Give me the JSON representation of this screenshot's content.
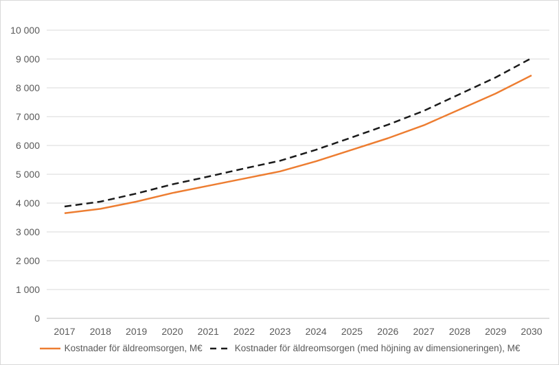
{
  "chart_data": {
    "type": "line",
    "title": "",
    "xlabel": "",
    "ylabel": "",
    "categories": [
      "2017",
      "2018",
      "2019",
      "2020",
      "2021",
      "2022",
      "2023",
      "2024",
      "2025",
      "2026",
      "2027",
      "2028",
      "2029",
      "2030"
    ],
    "series": [
      {
        "name": "Kostnader för äldreomsorgen, M€",
        "color": "#ED7D31",
        "dash": "solid",
        "values": [
          3650,
          3800,
          4050,
          4350,
          4600,
          4850,
          5100,
          5450,
          5850,
          6250,
          6700,
          7250,
          7800,
          8430
        ]
      },
      {
        "name": "Kostnader för äldreomsorgen (med höjning av dimensioneringen), M€",
        "color": "#1A1A1A",
        "dash": "dashed",
        "values": [
          3880,
          4050,
          4330,
          4650,
          4920,
          5200,
          5470,
          5850,
          6280,
          6720,
          7200,
          7780,
          8360,
          9030
        ]
      }
    ],
    "ylim": [
      0,
      10000
    ],
    "ytick_step": 1000,
    "y_tick_labels": [
      "0",
      "1 000",
      "2 000",
      "3 000",
      "4 000",
      "5 000",
      "6 000",
      "7 000",
      "8 000",
      "9 000",
      "10 000"
    ],
    "grid": true,
    "legend_position": "bottom",
    "colors": {
      "gridline": "#D9D9D9",
      "axis_line": "#BFBFBF",
      "tick_label": "#595959",
      "frame_border": "#D8D8D8",
      "background": "#FFFFFF"
    }
  }
}
